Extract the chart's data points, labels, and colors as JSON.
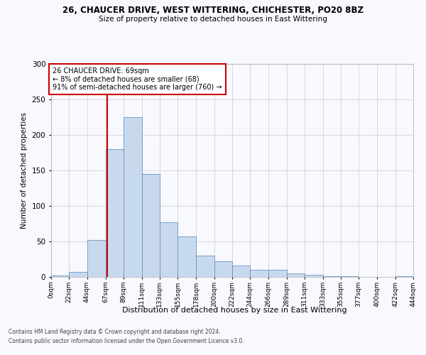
{
  "title1": "26, CHAUCER DRIVE, WEST WITTERING, CHICHESTER, PO20 8BZ",
  "title2": "Size of property relative to detached houses in East Wittering",
  "xlabel": "Distribution of detached houses by size in East Wittering",
  "ylabel": "Number of detached properties",
  "footer1": "Contains HM Land Registry data © Crown copyright and database right 2024.",
  "footer2": "Contains public sector information licensed under the Open Government Licence v3.0.",
  "annotation_title": "26 CHAUCER DRIVE: 69sqm",
  "annotation_line2": "← 8% of detached houses are smaller (68)",
  "annotation_line3": "91% of semi-detached houses are larger (760) →",
  "bar_color": "#c8d9ee",
  "bar_edge_color": "#5588bb",
  "vline_color": "#cc0000",
  "annotation_box_color": "#ffffff",
  "annotation_box_edge": "#cc0000",
  "background_color": "#f8f8ff",
  "grid_color": "#cccccc",
  "bin_edges": [
    0,
    22,
    44,
    67,
    89,
    111,
    133,
    155,
    178,
    200,
    222,
    244,
    266,
    289,
    311,
    333,
    355,
    377,
    400,
    422,
    444
  ],
  "bin_labels": [
    "0sqm",
    "22sqm",
    "44sqm",
    "67sqm",
    "89sqm",
    "111sqm",
    "133sqm",
    "155sqm",
    "178sqm",
    "200sqm",
    "222sqm",
    "244sqm",
    "266sqm",
    "289sqm",
    "311sqm",
    "333sqm",
    "355sqm",
    "377sqm",
    "400sqm",
    "422sqm",
    "444sqm"
  ],
  "bar_heights": [
    2,
    7,
    52,
    180,
    225,
    145,
    77,
    57,
    30,
    22,
    16,
    10,
    10,
    5,
    3,
    1,
    1,
    0,
    0,
    1
  ],
  "vline_x": 69,
  "ylim": [
    0,
    300
  ],
  "yticks": [
    0,
    50,
    100,
    150,
    200,
    250,
    300
  ],
  "figsize": [
    6.0,
    5.0
  ],
  "dpi": 100
}
